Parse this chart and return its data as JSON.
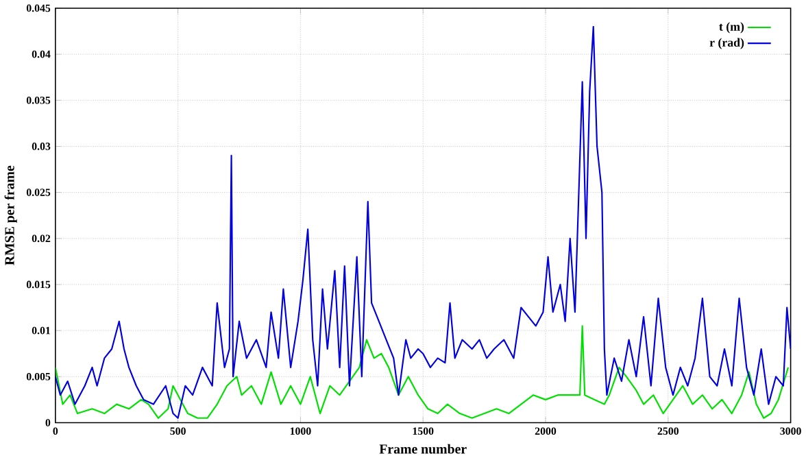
{
  "chart_data": {
    "type": "line",
    "xlabel": "Frame number",
    "ylabel": "RMSE per frame",
    "xlim": [
      0,
      3000
    ],
    "ylim": [
      0,
      0.045
    ],
    "xticks": [
      0,
      500,
      1000,
      1500,
      2000,
      2500,
      3000
    ],
    "yticks": [
      0,
      0.005,
      0.01,
      0.015,
      0.02,
      0.025,
      0.03,
      0.035,
      0.04,
      0.045
    ],
    "grid": true,
    "legend": "top right",
    "line_style": "solid",
    "marker": "none",
    "series": [
      {
        "name": "t (m)",
        "color": "#00e000",
        "x": [
          0,
          30,
          60,
          90,
          150,
          200,
          250,
          300,
          350,
          380,
          420,
          460,
          480,
          500,
          540,
          580,
          620,
          660,
          700,
          740,
          760,
          800,
          840,
          880,
          920,
          960,
          1000,
          1040,
          1080,
          1120,
          1160,
          1200,
          1240,
          1270,
          1300,
          1330,
          1360,
          1400,
          1440,
          1480,
          1520,
          1560,
          1600,
          1650,
          1700,
          1750,
          1800,
          1850,
          1900,
          1950,
          2000,
          2050,
          2100,
          2140,
          2150,
          2160,
          2200,
          2240,
          2260,
          2300,
          2330,
          2370,
          2400,
          2440,
          2480,
          2520,
          2560,
          2600,
          2640,
          2680,
          2720,
          2760,
          2800,
          2830,
          2860,
          2890,
          2920,
          2950,
          2990
        ],
        "values": [
          0.006,
          0.002,
          0.003,
          0.001,
          0.0015,
          0.001,
          0.002,
          0.0015,
          0.0025,
          0.002,
          0.0005,
          0.0015,
          0.004,
          0.003,
          0.001,
          0.0005,
          0.0005,
          0.002,
          0.004,
          0.005,
          0.003,
          0.004,
          0.002,
          0.0055,
          0.002,
          0.004,
          0.002,
          0.005,
          0.001,
          0.004,
          0.003,
          0.0045,
          0.006,
          0.009,
          0.007,
          0.0075,
          0.006,
          0.003,
          0.005,
          0.003,
          0.0015,
          0.001,
          0.002,
          0.001,
          0.0005,
          0.001,
          0.0015,
          0.001,
          0.002,
          0.003,
          0.0025,
          0.003,
          0.003,
          0.003,
          0.0105,
          0.003,
          0.0025,
          0.002,
          0.003,
          0.006,
          0.005,
          0.0035,
          0.002,
          0.003,
          0.001,
          0.0025,
          0.004,
          0.002,
          0.003,
          0.0015,
          0.0025,
          0.001,
          0.003,
          0.0055,
          0.002,
          0.0005,
          0.001,
          0.0025,
          0.006
        ]
      },
      {
        "name": "r (rad)",
        "color": "#0000e0",
        "x": [
          0,
          20,
          50,
          80,
          120,
          150,
          170,
          200,
          230,
          260,
          280,
          300,
          330,
          360,
          400,
          450,
          480,
          500,
          530,
          560,
          600,
          640,
          660,
          690,
          710,
          718,
          725,
          750,
          780,
          820,
          860,
          880,
          910,
          930,
          960,
          990,
          1010,
          1030,
          1050,
          1070,
          1090,
          1110,
          1140,
          1160,
          1180,
          1200,
          1230,
          1250,
          1275,
          1290,
          1320,
          1350,
          1380,
          1400,
          1430,
          1450,
          1480,
          1500,
          1530,
          1560,
          1590,
          1610,
          1630,
          1660,
          1700,
          1730,
          1760,
          1790,
          1830,
          1870,
          1900,
          1930,
          1960,
          1990,
          2010,
          2030,
          2060,
          2080,
          2100,
          2120,
          2150,
          2165,
          2180,
          2195,
          2210,
          2230,
          2240,
          2250,
          2280,
          2310,
          2340,
          2370,
          2400,
          2430,
          2460,
          2490,
          2520,
          2550,
          2580,
          2610,
          2640,
          2670,
          2700,
          2730,
          2760,
          2790,
          2820,
          2850,
          2880,
          2910,
          2940,
          2970,
          2985,
          3000
        ],
        "values": [
          0.005,
          0.003,
          0.0045,
          0.002,
          0.004,
          0.006,
          0.004,
          0.007,
          0.008,
          0.011,
          0.008,
          0.006,
          0.004,
          0.0025,
          0.002,
          0.004,
          0.001,
          0.0005,
          0.004,
          0.003,
          0.006,
          0.004,
          0.013,
          0.006,
          0.008,
          0.029,
          0.005,
          0.011,
          0.007,
          0.009,
          0.006,
          0.012,
          0.007,
          0.0145,
          0.006,
          0.011,
          0.0155,
          0.021,
          0.009,
          0.004,
          0.0145,
          0.008,
          0.0165,
          0.006,
          0.017,
          0.004,
          0.018,
          0.005,
          0.024,
          0.013,
          0.011,
          0.009,
          0.007,
          0.003,
          0.009,
          0.007,
          0.008,
          0.0075,
          0.006,
          0.007,
          0.0065,
          0.013,
          0.007,
          0.009,
          0.008,
          0.009,
          0.007,
          0.008,
          0.009,
          0.007,
          0.0125,
          0.0115,
          0.0105,
          0.012,
          0.018,
          0.012,
          0.015,
          0.011,
          0.02,
          0.012,
          0.037,
          0.02,
          0.036,
          0.043,
          0.03,
          0.025,
          0.008,
          0.003,
          0.007,
          0.0045,
          0.009,
          0.005,
          0.0115,
          0.004,
          0.0135,
          0.006,
          0.003,
          0.006,
          0.004,
          0.007,
          0.0135,
          0.005,
          0.004,
          0.008,
          0.004,
          0.0135,
          0.006,
          0.003,
          0.008,
          0.002,
          0.005,
          0.004,
          0.0125,
          0.008
        ]
      }
    ]
  }
}
